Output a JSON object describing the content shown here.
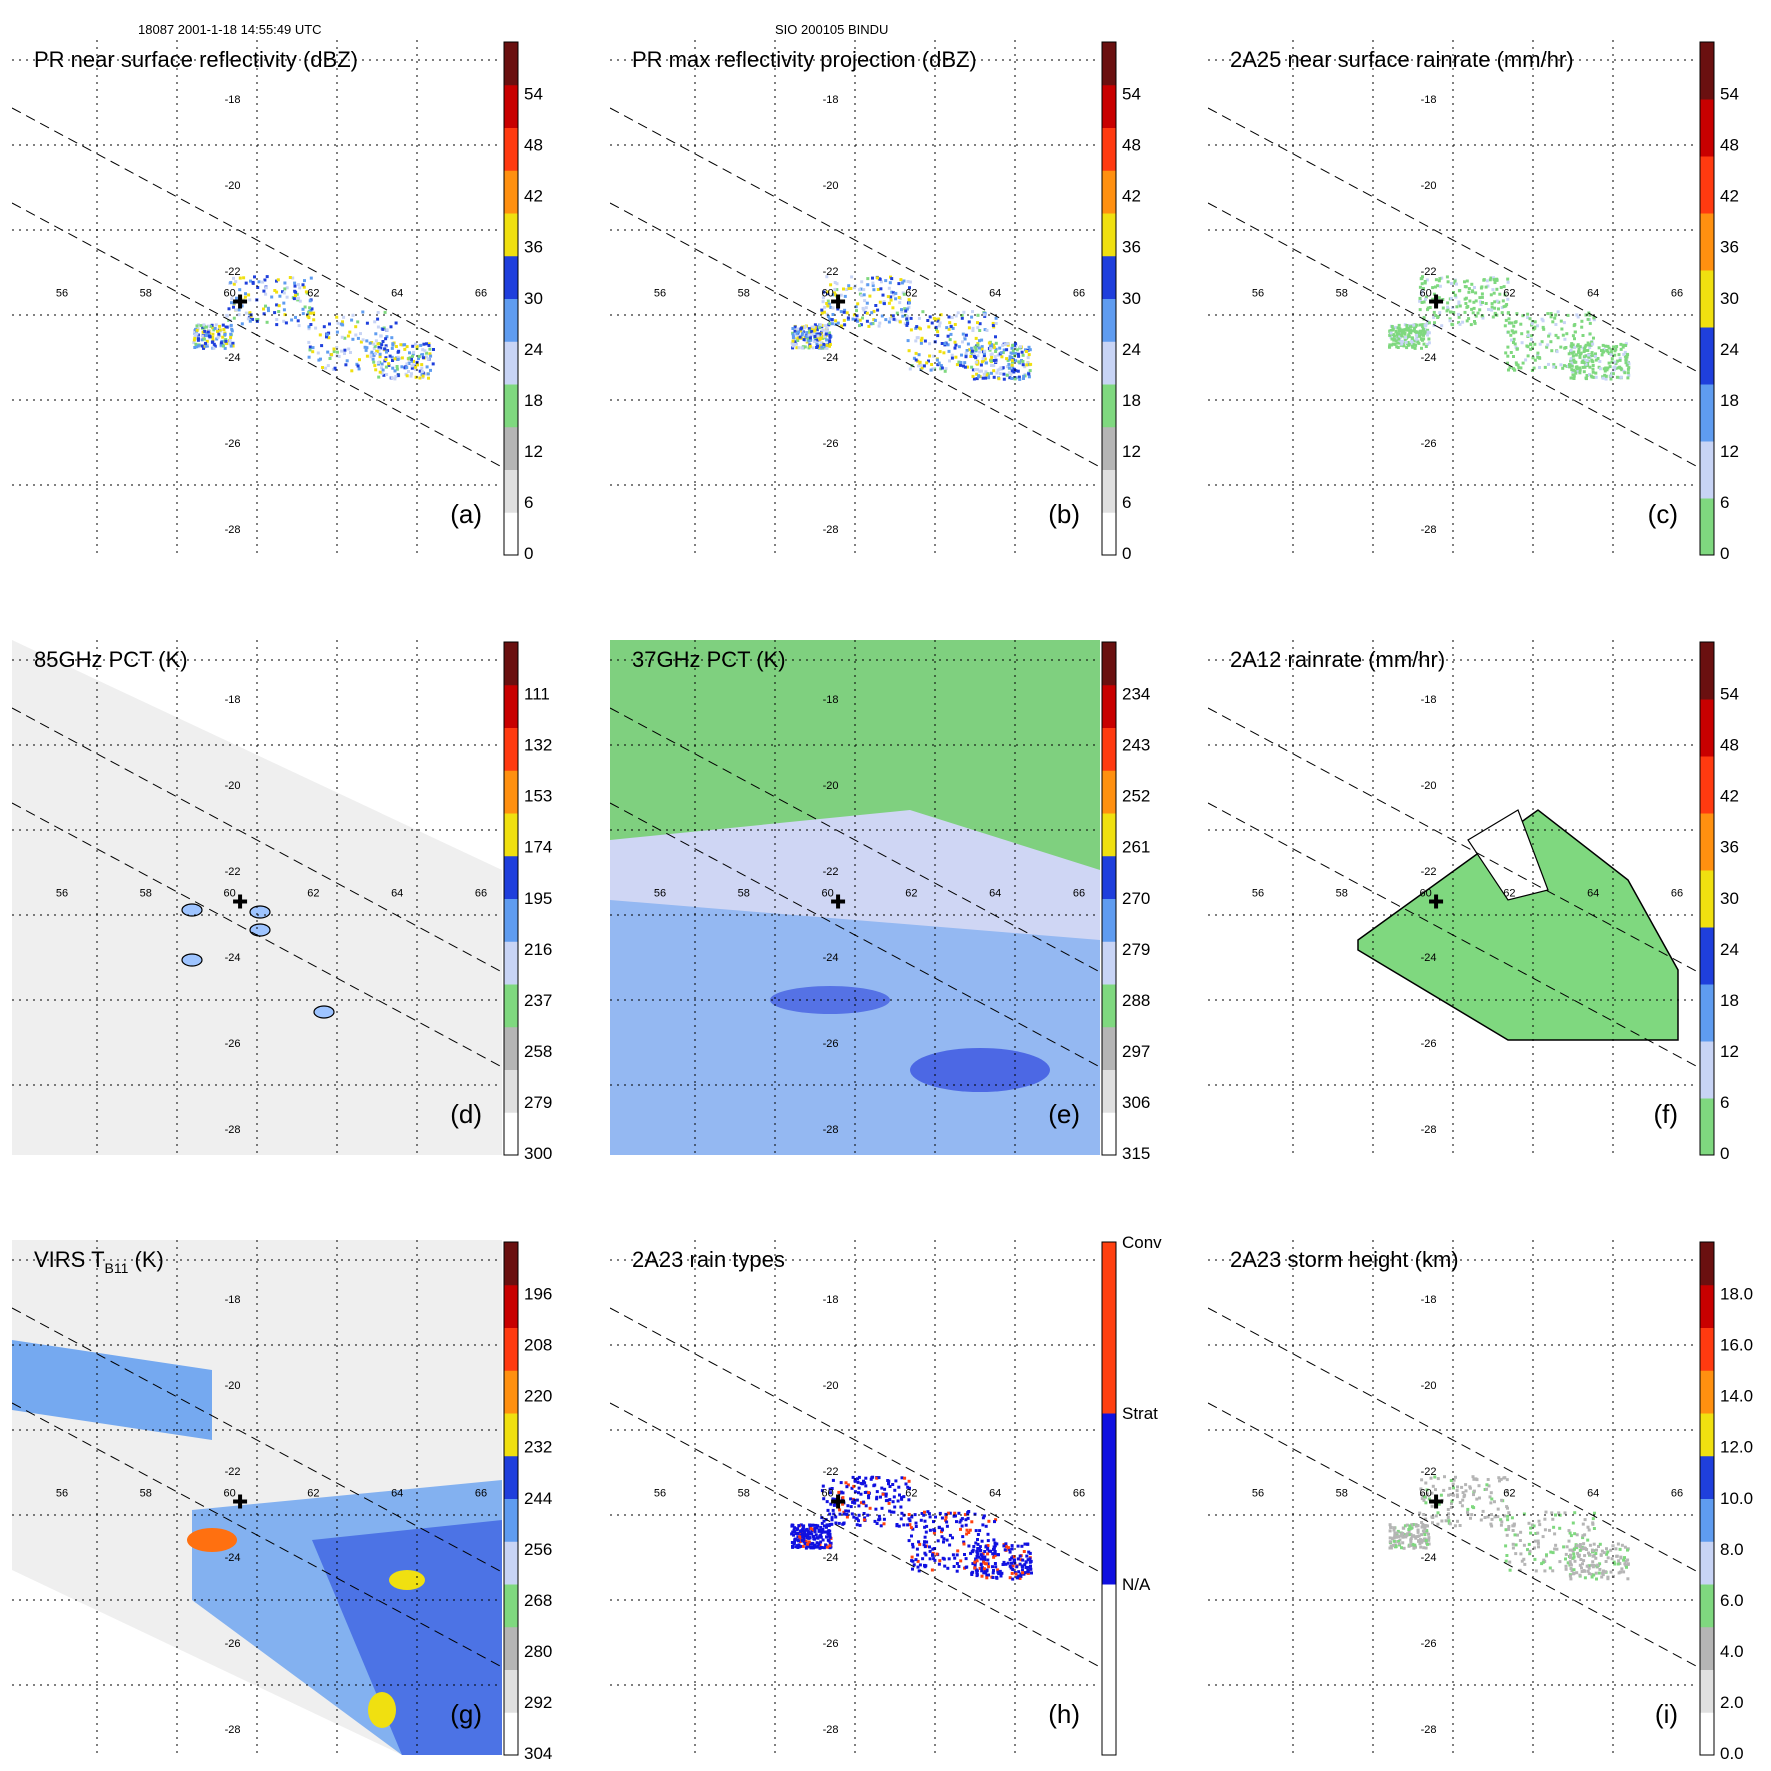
{
  "header": {
    "left": "18087 2001-1-18 14:55:49 UTC",
    "center": "SIO 200105 BINDU"
  },
  "map": {
    "lon_labels": [
      "56",
      "58",
      "60",
      "62",
      "64",
      "66"
    ],
    "lat_labels": [
      "-18",
      "-20",
      "-22",
      "-24",
      "-26",
      "-28"
    ],
    "lon_values": [
      56,
      58,
      60,
      62,
      64,
      66
    ],
    "lat_values": [
      -18,
      -20,
      -22,
      -24,
      -26,
      -28
    ],
    "center_marker": "storm-center-cross",
    "center_lon": 60.25,
    "center_lat": -22.5
  },
  "chart_data": [
    {
      "id": "a",
      "type": "heatmap",
      "title": "PR near surface reflectivity (dBZ)",
      "panel_label": "(a)",
      "colorbar_ticks": [
        "0",
        "6",
        "12",
        "18",
        "24",
        "30",
        "36",
        "42",
        "48",
        "54"
      ],
      "colorbar_colors": [
        "#ffffff",
        "#e0e0e0",
        "#b5b5b5",
        "#7fd87f",
        "#c8d4f5",
        "#5f9cf0",
        "#1f3fdc",
        "#f0e010",
        "#ff9010",
        "#ff3a10",
        "#c80000",
        "#6a1010"
      ],
      "swath": "pr"
    },
    {
      "id": "b",
      "type": "heatmap",
      "title": "PR max reflectivity projection (dBZ)",
      "panel_label": "(b)",
      "colorbar_ticks": [
        "0",
        "6",
        "12",
        "18",
        "24",
        "30",
        "36",
        "42",
        "48",
        "54"
      ],
      "colorbar_colors": [
        "#ffffff",
        "#e0e0e0",
        "#b5b5b5",
        "#7fd87f",
        "#c8d4f5",
        "#5f9cf0",
        "#1f3fdc",
        "#f0e010",
        "#ff9010",
        "#ff3a10",
        "#c80000",
        "#6a1010"
      ],
      "swath": "pr"
    },
    {
      "id": "c",
      "type": "heatmap",
      "title": "2A25 near surface rainrate (mm/hr)",
      "panel_label": "(c)",
      "colorbar_ticks": [
        "0",
        "6",
        "12",
        "18",
        "24",
        "30",
        "36",
        "42",
        "48",
        "54"
      ],
      "colorbar_colors": [
        "#7fd87f",
        "#c8d4f5",
        "#5f9cf0",
        "#1f3fdc",
        "#f0e010",
        "#ff9010",
        "#ff3a10",
        "#c80000",
        "#6a1010"
      ],
      "swath": "pr"
    },
    {
      "id": "d",
      "type": "heatmap",
      "title": "85GHz PCT (K)",
      "panel_label": "(d)",
      "colorbar_ticks": [
        "300",
        "279",
        "258",
        "237",
        "216",
        "195",
        "174",
        "153",
        "132",
        "111"
      ],
      "colorbar_colors": [
        "#ffffff",
        "#e0e0e0",
        "#b5b5b5",
        "#7fd87f",
        "#c8d4f5",
        "#5f9cf0",
        "#1f3fdc",
        "#f0e010",
        "#ff9010",
        "#ff3a10",
        "#c80000",
        "#6a1010"
      ],
      "swath": "tmi"
    },
    {
      "id": "e",
      "type": "heatmap",
      "title": "37GHz PCT (K)",
      "panel_label": "(e)",
      "colorbar_ticks": [
        "315",
        "306",
        "297",
        "288",
        "279",
        "270",
        "261",
        "252",
        "243",
        "234"
      ],
      "colorbar_colors": [
        "#ffffff",
        "#e0e0e0",
        "#b5b5b5",
        "#7fd87f",
        "#c8d4f5",
        "#5f9cf0",
        "#1f3fdc",
        "#f0e010",
        "#ff9010",
        "#ff3a10",
        "#c80000",
        "#6a1010"
      ],
      "swath": "tmi"
    },
    {
      "id": "f",
      "type": "heatmap",
      "title": "2A12 rainrate (mm/hr)",
      "panel_label": "(f)",
      "colorbar_ticks": [
        "0",
        "6",
        "12",
        "18",
        "24",
        "30",
        "36",
        "42",
        "48",
        "54"
      ],
      "colorbar_colors": [
        "#7fd87f",
        "#c8d4f5",
        "#5f9cf0",
        "#1f3fdc",
        "#f0e010",
        "#ff9010",
        "#ff3a10",
        "#c80000",
        "#6a1010"
      ],
      "swath": "tmi-rain"
    },
    {
      "id": "g",
      "type": "heatmap",
      "title": "VIRS T",
      "title_sub": "B11",
      "title_suffix": " (K)",
      "panel_label": "(g)",
      "colorbar_ticks": [
        "304",
        "292",
        "280",
        "268",
        "256",
        "244",
        "232",
        "220",
        "208",
        "196"
      ],
      "colorbar_colors": [
        "#ffffff",
        "#e0e0e0",
        "#b5b5b5",
        "#7fd87f",
        "#c8d4f5",
        "#5f9cf0",
        "#1f3fdc",
        "#f0e010",
        "#ff9010",
        "#ff3a10",
        "#c80000",
        "#6a1010"
      ],
      "swath": "virs"
    },
    {
      "id": "h",
      "type": "heatmap",
      "title": "2A23 rain types",
      "panel_label": "(h)",
      "categories": [
        "N/A",
        "Strat",
        "Conv"
      ],
      "category_colors": [
        "#ffffff",
        "#1010e0",
        "#ff4010"
      ],
      "swath": "pr"
    },
    {
      "id": "i",
      "type": "heatmap",
      "title": "2A23 storm height (km)",
      "panel_label": "(i)",
      "colorbar_ticks": [
        "0.0",
        "2.0",
        "4.0",
        "6.0",
        "8.0",
        "10.0",
        "12.0",
        "14.0",
        "16.0",
        "18.0"
      ],
      "colorbar_colors": [
        "#ffffff",
        "#e0e0e0",
        "#b5b5b5",
        "#7fd87f",
        "#c8d4f5",
        "#5f9cf0",
        "#1f3fdc",
        "#f0e010",
        "#ff9010",
        "#ff3a10",
        "#c80000",
        "#6a1010"
      ],
      "swath": "pr"
    }
  ]
}
